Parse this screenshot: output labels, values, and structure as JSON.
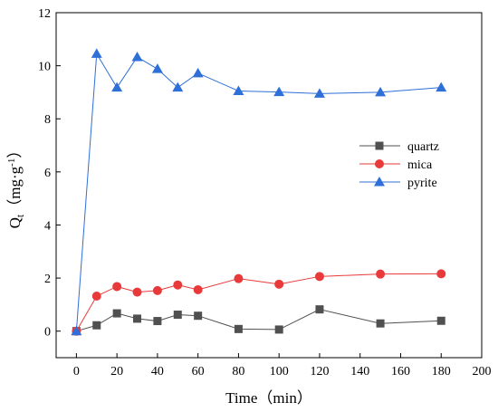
{
  "chart_data": {
    "type": "line",
    "xlabel": "Time（min）",
    "ylabel_main": "Q",
    "ylabel_sub": "t",
    "ylabel_unit": "（mg·g",
    "ylabel_exp": "-1",
    "ylabel_close": "）",
    "xlim": [
      -10,
      200
    ],
    "ylim": [
      -1,
      12
    ],
    "xticks": [
      0,
      20,
      40,
      60,
      80,
      100,
      120,
      140,
      160,
      180,
      200
    ],
    "yticks": [
      0,
      2,
      4,
      6,
      8,
      10,
      12
    ],
    "legend_position": "center-right",
    "series": [
      {
        "name": "quartz",
        "color": "#505050",
        "marker": "square",
        "x": [
          0,
          10,
          20,
          30,
          40,
          50,
          60,
          80,
          100,
          120,
          150,
          180
        ],
        "y": [
          0,
          0.22,
          0.67,
          0.47,
          0.38,
          0.62,
          0.58,
          0.08,
          0.06,
          0.82,
          0.29,
          0.39
        ]
      },
      {
        "name": "mica",
        "color": "#e83a3a",
        "marker": "circle",
        "x": [
          0,
          10,
          20,
          30,
          40,
          50,
          60,
          80,
          100,
          120,
          150,
          180
        ],
        "y": [
          0,
          1.32,
          1.68,
          1.47,
          1.53,
          1.74,
          1.56,
          1.98,
          1.77,
          2.06,
          2.15,
          2.16
        ]
      },
      {
        "name": "pyrite",
        "color": "#2f6fd8",
        "marker": "triangle",
        "x": [
          0,
          10,
          20,
          30,
          40,
          50,
          60,
          80,
          100,
          120,
          150,
          180
        ],
        "y": [
          0,
          10.45,
          9.18,
          10.33,
          9.88,
          9.18,
          9.72,
          9.05,
          9.01,
          8.95,
          9.0,
          9.18
        ]
      }
    ]
  }
}
